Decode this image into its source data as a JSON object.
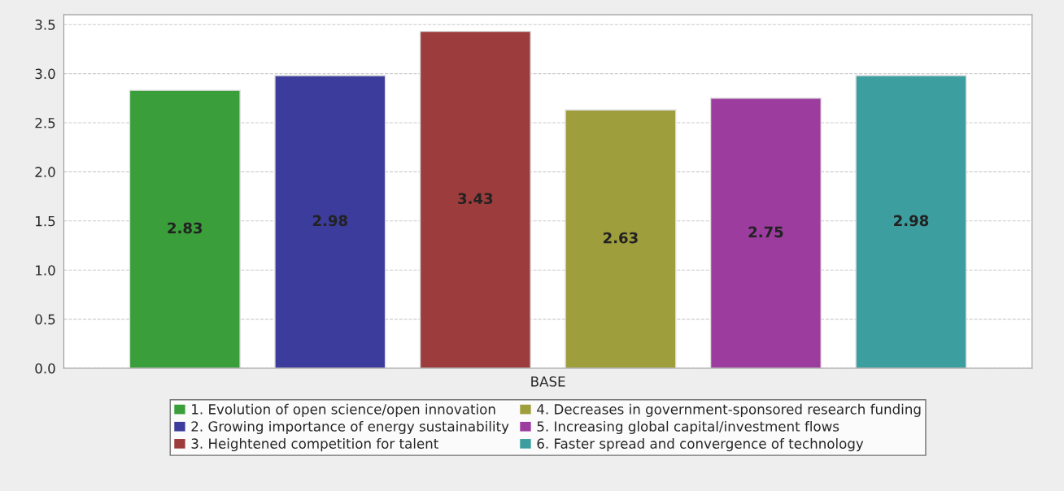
{
  "chart_data": {
    "type": "bar",
    "categories": [
      "BASE"
    ],
    "series": [
      {
        "name": "1. Evolution of open science/open innovation",
        "color": "#3a9e3a",
        "values": [
          2.83
        ]
      },
      {
        "name": "2. Growing importance of energy sustainability",
        "color": "#3c3c9c",
        "values": [
          2.98
        ]
      },
      {
        "name": "3. Heightened competition for talent",
        "color": "#9c3c3c",
        "values": [
          3.43
        ]
      },
      {
        "name": "4. Decreases in government-sponsored research funding",
        "color": "#9e9e3c",
        "values": [
          2.63
        ]
      },
      {
        "name": "5. Increasing global capital/investment flows",
        "color": "#9c3c9e",
        "values": [
          2.75
        ]
      },
      {
        "name": "6. Faster spread and convergence of technology",
        "color": "#3c9e9e",
        "values": [
          2.98
        ]
      }
    ],
    "ylim": [
      0,
      3.6
    ],
    "yticks": [
      {
        "value": 0,
        "label": "0.0"
      },
      {
        "value": 0.5,
        "label": "0.5"
      },
      {
        "value": 1,
        "label": "1.0"
      },
      {
        "value": 1.5,
        "label": "1.5"
      },
      {
        "value": 2,
        "label": "2.0"
      },
      {
        "value": 2.5,
        "label": "2.5"
      },
      {
        "value": 3,
        "label": "3.0"
      },
      {
        "value": 3.5,
        "label": "3.5"
      }
    ],
    "grid": "y",
    "legend": "bottom",
    "data_labels": true
  }
}
